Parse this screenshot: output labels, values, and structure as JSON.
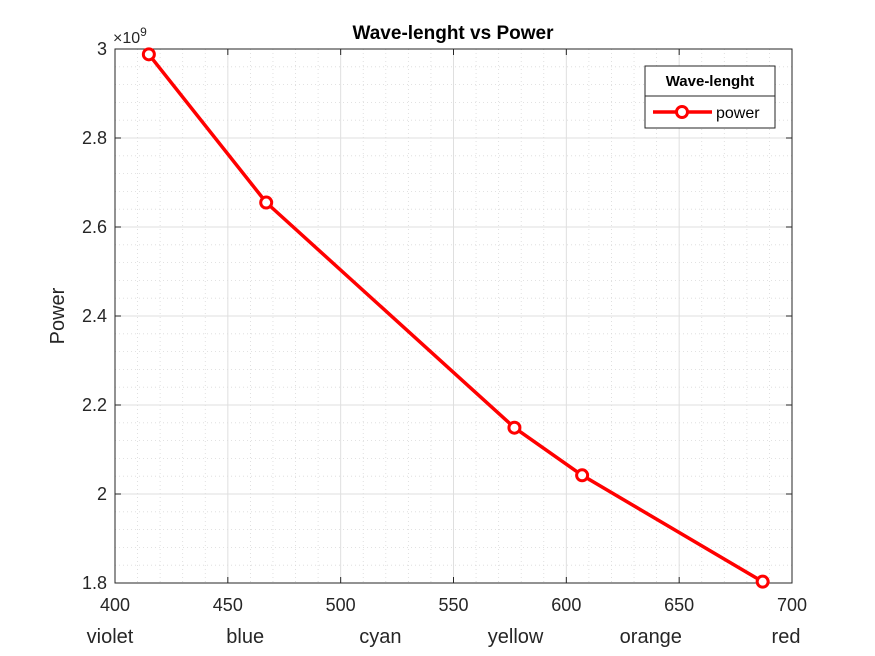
{
  "chart_data": {
    "type": "line",
    "title": "Wave-lenght vs Power",
    "xlabel": "",
    "ylabel": "Power",
    "xlim": [
      400,
      700
    ],
    "ylim": [
      1.8,
      3.0
    ],
    "y_multiplier": "×10",
    "y_exponent": "9",
    "xticks": [
      400,
      450,
      500,
      550,
      600,
      650,
      700
    ],
    "xtick_labels": [
      "400",
      "450",
      "500",
      "550",
      "600",
      "650",
      "700"
    ],
    "yticks": [
      1.8,
      2.0,
      2.2,
      2.4,
      2.6,
      2.8,
      3.0
    ],
    "ytick_labels": [
      "1.8",
      "2",
      "2.2",
      "2.4",
      "2.6",
      "2.8",
      "3"
    ],
    "color_names": [
      "violet",
      "blue",
      "cyan",
      "yellow",
      "orange",
      "red"
    ],
    "grid": "major and minor",
    "legend": {
      "title": "Wave-lenght",
      "placement": "top-right"
    },
    "series": [
      {
        "name": "power",
        "color": "#ff0000",
        "marker": "circle",
        "x": [
          415,
          467,
          577,
          607,
          687
        ],
        "y": [
          2.988,
          2.655,
          2.149,
          2.042,
          1.803
        ]
      }
    ]
  }
}
